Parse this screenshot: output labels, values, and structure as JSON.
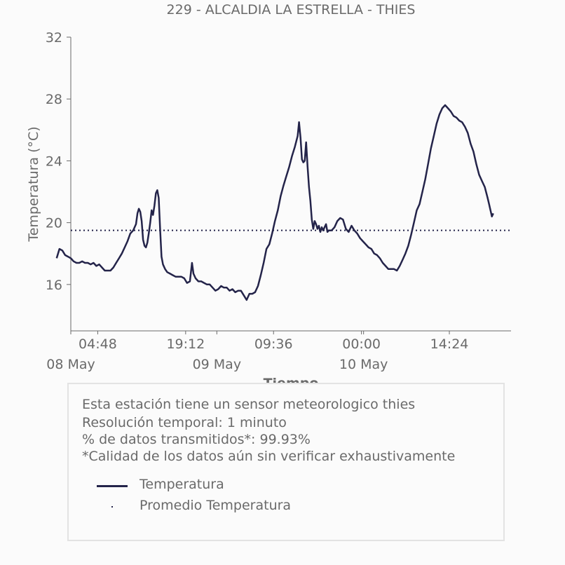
{
  "chart_data": {
    "type": "line",
    "title": "229 - ALCALDIA LA ESTRELLA - THIES",
    "xlabel": "Tiempo",
    "ylabel": "Temperatura (°C)",
    "ylim": [
      13,
      32
    ],
    "yticks": [
      16,
      20,
      24,
      28,
      32
    ],
    "xlim": [
      0,
      62.1
    ],
    "xticks": [
      {
        "t": 3.8,
        "label": "04:48"
      },
      {
        "t": 16.2,
        "label": "19:12"
      },
      {
        "t": 28.6,
        "label": "09:36"
      },
      {
        "t": 41.0,
        "label": "00:00"
      },
      {
        "t": 53.4,
        "label": "14:24"
      }
    ],
    "date_labels": [
      {
        "t": 0.0,
        "label": "08 May"
      },
      {
        "t": 20.6,
        "label": "09 May"
      },
      {
        "t": 41.3,
        "label": "10 May"
      }
    ],
    "grid": false,
    "legend_position": "below",
    "series": [
      {
        "name": "Temperatura",
        "color": "#24244a",
        "points": [
          [
            -2.0,
            17.7
          ],
          [
            -1.6,
            18.3
          ],
          [
            -1.2,
            18.2
          ],
          [
            -0.8,
            17.9
          ],
          [
            -0.4,
            17.8
          ],
          [
            0.0,
            17.7
          ],
          [
            0.4,
            17.5
          ],
          [
            0.8,
            17.4
          ],
          [
            1.2,
            17.4
          ],
          [
            1.6,
            17.5
          ],
          [
            2.0,
            17.4
          ],
          [
            2.4,
            17.4
          ],
          [
            2.8,
            17.3
          ],
          [
            3.2,
            17.4
          ],
          [
            3.6,
            17.2
          ],
          [
            4.0,
            17.3
          ],
          [
            4.4,
            17.1
          ],
          [
            4.8,
            16.9
          ],
          [
            5.2,
            16.9
          ],
          [
            5.6,
            16.9
          ],
          [
            6.0,
            17.1
          ],
          [
            6.4,
            17.4
          ],
          [
            6.8,
            17.7
          ],
          [
            7.2,
            18.0
          ],
          [
            7.6,
            18.4
          ],
          [
            8.0,
            18.8
          ],
          [
            8.4,
            19.3
          ],
          [
            8.8,
            19.5
          ],
          [
            9.2,
            19.9
          ],
          [
            9.4,
            20.6
          ],
          [
            9.6,
            20.9
          ],
          [
            9.8,
            20.7
          ],
          [
            10.0,
            20.1
          ],
          [
            10.2,
            18.9
          ],
          [
            10.4,
            18.5
          ],
          [
            10.6,
            18.4
          ],
          [
            10.8,
            18.7
          ],
          [
            11.0,
            19.3
          ],
          [
            11.2,
            20.0
          ],
          [
            11.4,
            20.8
          ],
          [
            11.6,
            20.5
          ],
          [
            11.8,
            21.1
          ],
          [
            12.0,
            21.9
          ],
          [
            12.2,
            22.1
          ],
          [
            12.4,
            21.6
          ],
          [
            12.6,
            19.6
          ],
          [
            12.8,
            17.8
          ],
          [
            13.0,
            17.3
          ],
          [
            13.3,
            17.0
          ],
          [
            13.6,
            16.8
          ],
          [
            14.0,
            16.7
          ],
          [
            14.4,
            16.6
          ],
          [
            14.8,
            16.5
          ],
          [
            15.2,
            16.5
          ],
          [
            15.6,
            16.5
          ],
          [
            16.0,
            16.4
          ],
          [
            16.4,
            16.1
          ],
          [
            16.8,
            16.2
          ],
          [
            17.1,
            17.4
          ],
          [
            17.3,
            16.7
          ],
          [
            17.6,
            16.4
          ],
          [
            18.0,
            16.2
          ],
          [
            18.4,
            16.2
          ],
          [
            18.8,
            16.1
          ],
          [
            19.2,
            16.0
          ],
          [
            19.6,
            16.0
          ],
          [
            20.0,
            15.8
          ],
          [
            20.4,
            15.6
          ],
          [
            20.8,
            15.7
          ],
          [
            21.2,
            15.9
          ],
          [
            21.6,
            15.8
          ],
          [
            22.0,
            15.8
          ],
          [
            22.4,
            15.6
          ],
          [
            22.8,
            15.7
          ],
          [
            23.2,
            15.5
          ],
          [
            23.6,
            15.6
          ],
          [
            24.0,
            15.6
          ],
          [
            24.4,
            15.3
          ],
          [
            24.8,
            15.0
          ],
          [
            25.2,
            15.4
          ],
          [
            25.6,
            15.4
          ],
          [
            26.0,
            15.5
          ],
          [
            26.4,
            15.9
          ],
          [
            26.8,
            16.6
          ],
          [
            27.2,
            17.4
          ],
          [
            27.6,
            18.3
          ],
          [
            28.0,
            18.6
          ],
          [
            28.4,
            19.3
          ],
          [
            28.8,
            20.1
          ],
          [
            29.2,
            20.8
          ],
          [
            29.6,
            21.7
          ],
          [
            30.0,
            22.4
          ],
          [
            30.4,
            23.0
          ],
          [
            30.8,
            23.6
          ],
          [
            31.2,
            24.3
          ],
          [
            31.6,
            24.9
          ],
          [
            32.0,
            25.6
          ],
          [
            32.2,
            26.5
          ],
          [
            32.4,
            25.5
          ],
          [
            32.6,
            24.1
          ],
          [
            32.8,
            23.9
          ],
          [
            33.0,
            24.0
          ],
          [
            33.2,
            25.2
          ],
          [
            33.4,
            23.6
          ],
          [
            33.6,
            22.3
          ],
          [
            33.8,
            21.4
          ],
          [
            34.0,
            20.2
          ],
          [
            34.2,
            19.6
          ],
          [
            34.4,
            20.1
          ],
          [
            34.6,
            19.9
          ],
          [
            34.8,
            19.6
          ],
          [
            35.0,
            19.8
          ],
          [
            35.2,
            19.4
          ],
          [
            35.4,
            19.7
          ],
          [
            35.6,
            19.5
          ],
          [
            35.8,
            19.7
          ],
          [
            36.0,
            19.9
          ],
          [
            36.2,
            19.4
          ],
          [
            36.4,
            19.5
          ],
          [
            36.8,
            19.5
          ],
          [
            37.2,
            19.7
          ],
          [
            37.6,
            20.1
          ],
          [
            38.0,
            20.3
          ],
          [
            38.4,
            20.2
          ],
          [
            38.8,
            19.6
          ],
          [
            39.2,
            19.4
          ],
          [
            39.6,
            19.8
          ],
          [
            40.0,
            19.5
          ],
          [
            40.4,
            19.3
          ],
          [
            40.8,
            19.0
          ],
          [
            41.2,
            18.8
          ],
          [
            41.6,
            18.6
          ],
          [
            42.0,
            18.4
          ],
          [
            42.4,
            18.3
          ],
          [
            42.8,
            18.0
          ],
          [
            43.2,
            17.9
          ],
          [
            43.6,
            17.7
          ],
          [
            44.0,
            17.4
          ],
          [
            44.4,
            17.2
          ],
          [
            44.8,
            17.0
          ],
          [
            45.2,
            17.0
          ],
          [
            45.6,
            17.0
          ],
          [
            46.0,
            16.9
          ],
          [
            46.4,
            17.2
          ],
          [
            46.8,
            17.6
          ],
          [
            47.2,
            18.0
          ],
          [
            47.6,
            18.5
          ],
          [
            48.0,
            19.2
          ],
          [
            48.4,
            20.0
          ],
          [
            48.8,
            20.8
          ],
          [
            49.2,
            21.2
          ],
          [
            49.6,
            22.0
          ],
          [
            50.0,
            22.8
          ],
          [
            50.4,
            23.8
          ],
          [
            50.8,
            24.8
          ],
          [
            51.2,
            25.6
          ],
          [
            51.6,
            26.4
          ],
          [
            52.0,
            27.0
          ],
          [
            52.4,
            27.4
          ],
          [
            52.8,
            27.6
          ],
          [
            53.2,
            27.4
          ],
          [
            53.6,
            27.2
          ],
          [
            54.0,
            26.9
          ],
          [
            54.4,
            26.8
          ],
          [
            54.8,
            26.6
          ],
          [
            55.2,
            26.5
          ],
          [
            55.6,
            26.2
          ],
          [
            56.0,
            25.8
          ],
          [
            56.4,
            25.1
          ],
          [
            56.8,
            24.6
          ],
          [
            57.2,
            23.8
          ],
          [
            57.6,
            23.1
          ],
          [
            58.0,
            22.7
          ],
          [
            58.4,
            22.3
          ],
          [
            58.8,
            21.6
          ],
          [
            59.0,
            21.2
          ],
          [
            59.2,
            20.8
          ],
          [
            59.4,
            20.4
          ],
          [
            59.6,
            20.6
          ]
        ]
      },
      {
        "name": "Promedio Temperatura",
        "color": "#24244a",
        "constant": 19.5,
        "style": "dotted"
      }
    ]
  },
  "info": {
    "line1": "Esta estación tiene un sensor meteorologico thies",
    "line2": "Resolución temporal: 1 minuto",
    "line3": "% de datos transmitidos*: 99.93%",
    "line4": "*Calidad de los datos aún sin verificar exhaustivamente"
  },
  "legend": {
    "series1": "Temperatura",
    "series2": "Promedio Temperatura"
  }
}
